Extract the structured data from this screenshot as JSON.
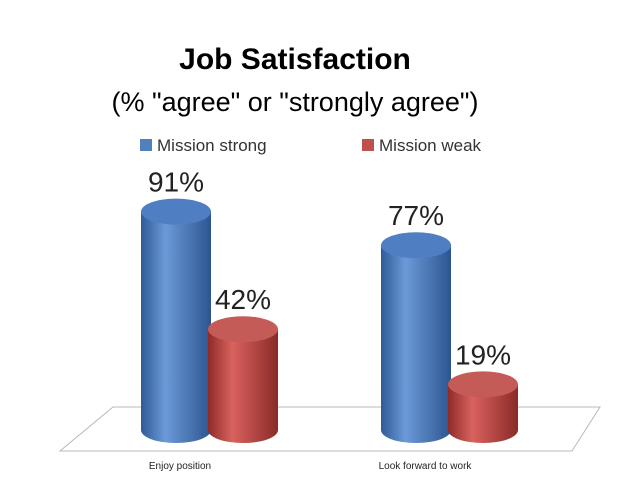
{
  "chart_data": {
    "type": "bar",
    "title": "Job Satisfaction",
    "subtitle": "(% \"agree\" or \"strongly agree\")",
    "categories": [
      "Enjoy position",
      "Look forward to work"
    ],
    "series": [
      {
        "name": "Mission strong",
        "values": [
          91,
          77
        ],
        "labels": [
          "91%",
          "77%"
        ],
        "color": "#4f81bd"
      },
      {
        "name": "Mission weak",
        "values": [
          42,
          19
        ],
        "labels": [
          "42%",
          "19%"
        ],
        "color": "#c0504d"
      }
    ],
    "ylim": [
      0,
      100
    ],
    "legend": "top",
    "grid": false,
    "style": "3d-cylinder"
  }
}
